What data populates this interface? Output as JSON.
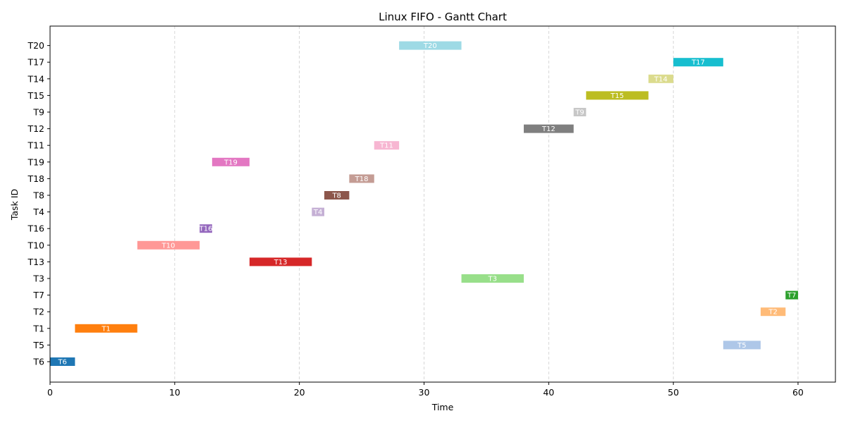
{
  "chart_data": {
    "type": "gantt",
    "title": "Linux FIFO - Gantt Chart",
    "xlabel": "Time",
    "ylabel": "Task ID",
    "xlim": [
      0,
      63
    ],
    "xticks": [
      0,
      10,
      20,
      30,
      40,
      50,
      60
    ],
    "grid": "x-dashed",
    "tasks": [
      {
        "id": "T6",
        "start": 0,
        "end": 2,
        "color": "#1f77b4"
      },
      {
        "id": "T5",
        "start": 54,
        "end": 57,
        "color": "#aec7e8"
      },
      {
        "id": "T1",
        "start": 2,
        "end": 7,
        "color": "#ff7f0e"
      },
      {
        "id": "T2",
        "start": 57,
        "end": 59,
        "color": "#ffbb78"
      },
      {
        "id": "T7",
        "start": 59,
        "end": 60,
        "color": "#2ca02c"
      },
      {
        "id": "T3",
        "start": 33,
        "end": 38,
        "color": "#98df8a"
      },
      {
        "id": "T13",
        "start": 16,
        "end": 21,
        "color": "#d62728"
      },
      {
        "id": "T10",
        "start": 7,
        "end": 12,
        "color": "#ff9896"
      },
      {
        "id": "T16",
        "start": 12,
        "end": 13,
        "color": "#9467bd"
      },
      {
        "id": "T4",
        "start": 21,
        "end": 22,
        "color": "#c5b0d5"
      },
      {
        "id": "T8",
        "start": 22,
        "end": 24,
        "color": "#8c564b"
      },
      {
        "id": "T18",
        "start": 24,
        "end": 26,
        "color": "#c49c94"
      },
      {
        "id": "T19",
        "start": 13,
        "end": 16,
        "color": "#e377c2"
      },
      {
        "id": "T11",
        "start": 26,
        "end": 28,
        "color": "#f7b6d2"
      },
      {
        "id": "T12",
        "start": 38,
        "end": 42,
        "color": "#7f7f7f"
      },
      {
        "id": "T9",
        "start": 42,
        "end": 43,
        "color": "#c7c7c7"
      },
      {
        "id": "T15",
        "start": 43,
        "end": 48,
        "color": "#bcbd22"
      },
      {
        "id": "T14",
        "start": 48,
        "end": 50,
        "color": "#dbdb8d"
      },
      {
        "id": "T17",
        "start": 50,
        "end": 54,
        "color": "#17becf"
      },
      {
        "id": "T20",
        "start": 28,
        "end": 33,
        "color": "#9edae5"
      }
    ]
  }
}
